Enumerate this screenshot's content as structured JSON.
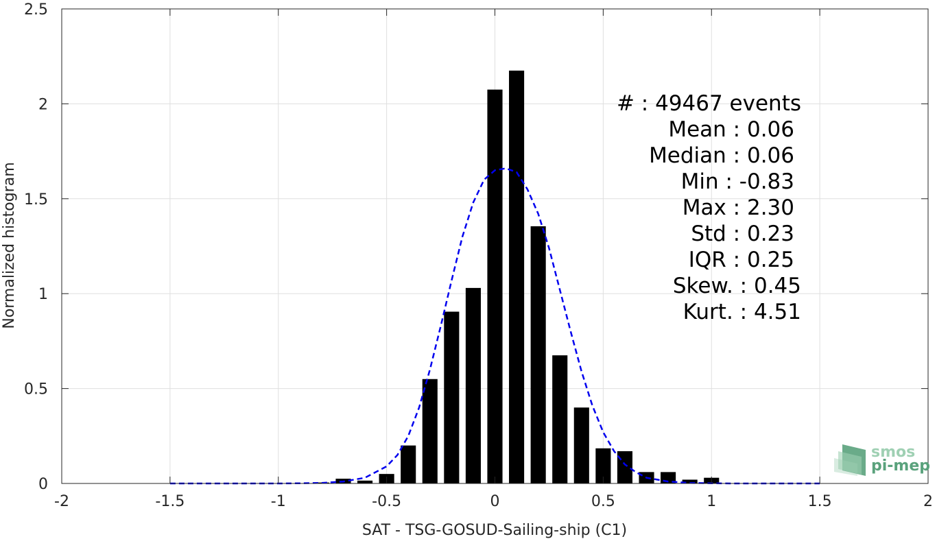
{
  "chart_data": {
    "type": "bar",
    "xlabel": "SAT - TSG-GOSUD-Sailing-ship (C1)",
    "ylabel": "Normalized histogram",
    "xlim": [
      -2,
      2
    ],
    "ylim": [
      0,
      2.5
    ],
    "x_ticks": [
      "-2",
      "-1.5",
      "-1",
      "-0.5",
      "0",
      "0.5",
      "1",
      "1.5",
      "2"
    ],
    "y_ticks": [
      "0",
      "0.5",
      "1",
      "1.5",
      "2",
      "2.5"
    ],
    "grid": true,
    "bin_centers": [
      -0.8,
      -0.7,
      -0.6,
      -0.5,
      -0.4,
      -0.3,
      -0.2,
      -0.1,
      0.0,
      0.1,
      0.2,
      0.3,
      0.4,
      0.5,
      0.6,
      0.7,
      0.8,
      0.9,
      1.0
    ],
    "values": [
      0.005,
      0.025,
      0.015,
      0.05,
      0.2,
      0.55,
      0.905,
      1.03,
      2.075,
      2.175,
      1.355,
      0.675,
      0.4,
      0.185,
      0.17,
      0.06,
      0.06,
      0.02,
      0.03
    ],
    "fit_curve": {
      "style": "dashed",
      "color": "#0000ee",
      "x": [
        -1.5,
        -1.4,
        -1.3,
        -1.2,
        -1.1,
        -1.0,
        -0.9,
        -0.8,
        -0.7,
        -0.6,
        -0.5,
        -0.45,
        -0.4,
        -0.35,
        -0.3,
        -0.25,
        -0.2,
        -0.15,
        -0.1,
        -0.05,
        0.0,
        0.05,
        0.1,
        0.15,
        0.2,
        0.25,
        0.3,
        0.35,
        0.4,
        0.45,
        0.5,
        0.55,
        0.6,
        0.65,
        0.7,
        0.8,
        0.9,
        1.0,
        1.1,
        1.2,
        1.3,
        1.4,
        1.5
      ],
      "y": [
        0,
        0,
        0,
        0,
        0,
        0,
        0.001,
        0.003,
        0.01,
        0.03,
        0.09,
        0.15,
        0.25,
        0.4,
        0.6,
        0.83,
        1.07,
        1.3,
        1.48,
        1.6,
        1.65,
        1.66,
        1.64,
        1.55,
        1.42,
        1.24,
        1.02,
        0.8,
        0.59,
        0.41,
        0.27,
        0.17,
        0.1,
        0.06,
        0.03,
        0.01,
        0.003,
        0.001,
        0,
        0,
        0,
        0,
        0
      ]
    },
    "bar_color": "#000000"
  },
  "stats": [
    "#  : 49467 events",
    "Mean : 0.06",
    "Median : 0.06",
    "Min : -0.83",
    "Max : 2.30",
    "Std : 0.23",
    "IQR : 0.25",
    "Skew. : 0.45",
    "Kurt. : 4.51"
  ],
  "logo": {
    "line1": "smos",
    "line2": "pi-mep",
    "color_dark": "#5aa27c",
    "color_light": "#9fd0b3"
  }
}
